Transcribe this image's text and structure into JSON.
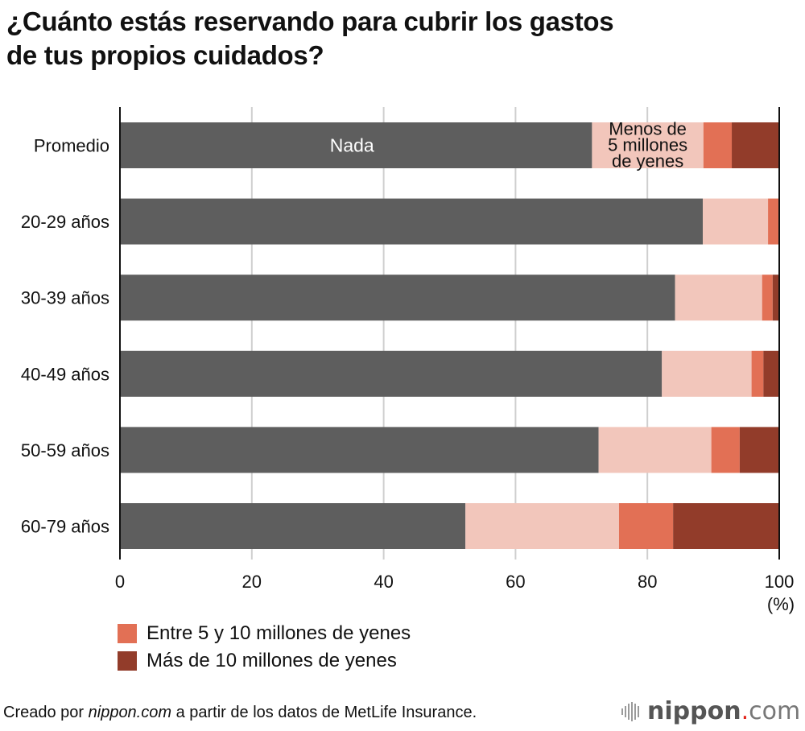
{
  "title": {
    "line1": "¿Cuánto estás reservando para cubrir los gastos",
    "line2": "de tus propios cuidados?"
  },
  "chart_data": {
    "type": "bar",
    "orientation": "horizontal",
    "stacked": true,
    "title": "¿Cuánto estás reservando para cubrir los gastos de tus propios cuidados?",
    "xlabel": "",
    "ylabel": "",
    "x_unit_label": "(%)",
    "xlim": [
      0,
      100
    ],
    "xticks": [
      0,
      20,
      40,
      60,
      80,
      100
    ],
    "grid": true,
    "categories": [
      "Promedio",
      "20-29 años",
      "30-39 años",
      "40-49 años",
      "50-59 años",
      "60-79 años"
    ],
    "series": [
      {
        "name": "Nada",
        "color": "#5e5e5e",
        "values": [
          71.6,
          88.4,
          84.2,
          82.2,
          72.6,
          52.4
        ]
      },
      {
        "name": "Menos de 5 millones de yenes",
        "color": "#f2c6bb",
        "values": [
          16.9,
          9.9,
          13.2,
          13.6,
          17.1,
          23.3
        ]
      },
      {
        "name": "Entre 5 y 10 millones de yenes",
        "color": "#e27055",
        "values": [
          4.3,
          1.7,
          1.6,
          1.8,
          4.3,
          8.2
        ]
      },
      {
        "name": "Más de 10 millones de yenes",
        "color": "#923c2a",
        "values": [
          7.2,
          0.0,
          1.0,
          2.4,
          6.0,
          16.1
        ]
      }
    ],
    "inline_labels": [
      {
        "series": "Nada",
        "category": "Promedio",
        "text": "Nada",
        "color": "#ffffff"
      },
      {
        "series": "Menos de 5 millones de yenes",
        "category": "Promedio",
        "lines": [
          "Menos de",
          "5 millones",
          "de yenes"
        ],
        "color": "#111111"
      }
    ],
    "legend": {
      "placement": "bottom-left",
      "entries": [
        "Entre 5 y 10 millones de yenes",
        "Más de 10 millones de yenes"
      ]
    }
  },
  "legend": {
    "items": [
      {
        "label": "Entre 5 y 10 millones de yenes",
        "color": "#e27055"
      },
      {
        "label": "Más de 10 millones de yenes",
        "color": "#923c2a"
      }
    ]
  },
  "footer": {
    "prefix": "Creado por ",
    "site": "nippon.com",
    "suffix": " a partir de los datos de MetLife Insurance."
  },
  "logo": {
    "name": "nippon",
    "dot": ".",
    "tld": "com"
  }
}
